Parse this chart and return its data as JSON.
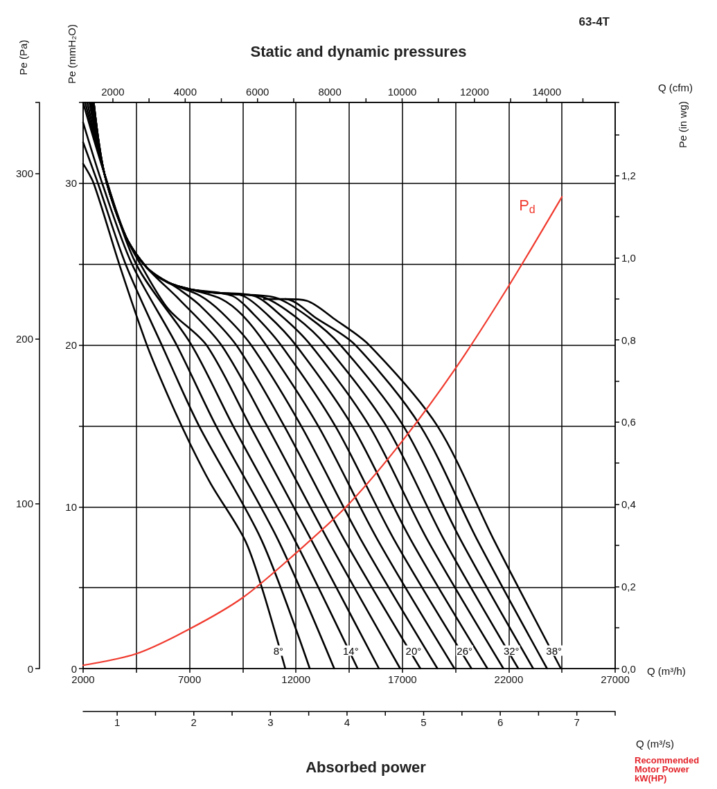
{
  "chart_data": {
    "type": "line",
    "title": "Static and dynamic pressures",
    "subtitle": "63-4T",
    "xlabel": "Q (m³/h)",
    "x2label": "Q (cfm)",
    "ylabel": "Pe (Pa)",
    "y2label": "Pe (in wg)",
    "y3label": "Pe (mmH₂O)",
    "xlim": [
      2000,
      27000
    ],
    "xticks": [
      2000,
      {
        "value": 4500,
        "label": null
      },
      7000,
      {
        "value": 9500,
        "label": null
      },
      12000,
      {
        "value": 14500,
        "label": null
      },
      17000,
      {
        "value": 19500,
        "label": null
      },
      22000,
      {
        "value": 24500,
        "label": null
      },
      27000
    ],
    "x2lim": [
      1177,
      15892
    ],
    "x2ticks": [
      2000,
      {
        "value": 3000,
        "label": null
      },
      4000,
      {
        "value": 5000,
        "label": null
      },
      6000,
      {
        "value": 7000,
        "label": null
      },
      8000,
      {
        "value": 9000,
        "label": null
      },
      10000,
      {
        "value": 11000,
        "label": null
      },
      12000,
      {
        "value": 13000,
        "label": null
      },
      14000,
      {
        "value": 15000,
        "label": null
      }
    ],
    "ylim": [
      0,
      343.2
    ],
    "yticks": [
      0,
      100,
      200,
      300
    ],
    "y2lim": [
      0,
      1.378
    ],
    "y2ticks": [
      {
        "value": 0,
        "label": "0,0"
      },
      {
        "value": 0.1,
        "label": null
      },
      {
        "value": 0.2,
        "label": "0,2"
      },
      {
        "value": 0.3,
        "label": null
      },
      {
        "value": 0.4,
        "label": "0,4"
      },
      {
        "value": 0.5,
        "label": null
      },
      {
        "value": 0.6,
        "label": "0,6"
      },
      {
        "value": 0.7,
        "label": null
      },
      {
        "value": 0.8,
        "label": "0,8"
      },
      {
        "value": 0.9,
        "label": null
      },
      {
        "value": 1.0,
        "label": "1,0"
      },
      {
        "value": 1.1,
        "label": null
      },
      {
        "value": 1.2,
        "label": "1,2"
      },
      {
        "value": 1.3,
        "label": null
      }
    ],
    "y3lim": [
      0,
      35
    ],
    "y3ticks": [
      0,
      {
        "value": 5,
        "label": null
      },
      10,
      {
        "value": 15,
        "label": null
      },
      20,
      {
        "value": 25,
        "label": null
      },
      30
    ],
    "grid": true,
    "legend": false,
    "marker": "none",
    "line_style": "solid",
    "annotations": [
      "Absorbed power",
      "Recommended Motor Power kW(HP)",
      "Q (m³/s)",
      "1",
      "2",
      "3",
      "4",
      "5",
      "6",
      "7"
    ],
    "series": [
      {
        "name": "8°",
        "color": "#000000",
        "x": [
          2000,
          2500,
          3700,
          5000,
          6000,
          7000,
          8000,
          9600,
          10400,
          11500
        ],
        "values": [
          306,
          294,
          245,
          196,
          165,
          137,
          112,
          78,
          49,
          0
        ]
      },
      {
        "color": "#000000",
        "x": [
          2000,
          2700,
          4000,
          5700,
          7450,
          10380,
          12650
        ],
        "values": [
          319,
          294,
          245,
          196,
          147,
          78,
          0
        ]
      },
      {
        "color": "#000000",
        "x": [
          2000,
          2900,
          4300,
          6400,
          8250,
          11160,
          13800
        ],
        "values": [
          331,
          294,
          245,
          196,
          147,
          78,
          0
        ]
      },
      {
        "name": "14°",
        "color": "#000000",
        "x": [
          2000,
          3000,
          4500,
          7100,
          9050,
          11940,
          14900
        ],
        "values": [
          343,
          300,
          245,
          196,
          147,
          78,
          0
        ]
      },
      {
        "color": "#000000",
        "x": [
          2100,
          3000,
          4000,
          4700,
          6000,
          7800,
          9850,
          12720,
          15900
        ],
        "values": [
          343,
          300,
          262,
          245,
          218,
          196,
          147,
          78,
          0
        ]
      },
      {
        "color": "#000000",
        "x": [
          2200,
          3000,
          4000,
          5000,
          6500,
          8500,
          10650,
          13500,
          16900
        ],
        "values": [
          343,
          300,
          262,
          243,
          224,
          196,
          147,
          78,
          0
        ]
      },
      {
        "name": "20°",
        "color": "#000000",
        "x": [
          2300,
          3000,
          4000,
          5000,
          6500,
          7500,
          9200,
          11450,
          14280,
          17850
        ],
        "values": [
          343,
          300,
          262,
          243,
          230,
          220,
          196,
          147,
          78,
          0
        ]
      },
      {
        "color": "#000000",
        "x": [
          2350,
          3000,
          4000,
          5000,
          6000,
          7500,
          8500,
          9900,
          12250,
          15060,
          18650
        ],
        "values": [
          343,
          300,
          262,
          243,
          234,
          226,
          216,
          196,
          147,
          78,
          0
        ]
      },
      {
        "color": "#000000",
        "x": [
          2400,
          3000,
          4000,
          5000,
          6000,
          7000,
          8500,
          9500,
          10600,
          13050,
          15840,
          19450
        ],
        "values": [
          343,
          300,
          262,
          243,
          234,
          230,
          224,
          214,
          196,
          147,
          78,
          0
        ]
      },
      {
        "name": "26°",
        "color": "#000000",
        "x": [
          2450,
          3000,
          4000,
          5000,
          6000,
          7000,
          9000,
          10000,
          11300,
          13850,
          16620,
          20250
        ],
        "values": [
          343,
          300,
          262,
          243,
          234,
          230,
          226,
          215,
          196,
          147,
          78,
          0
        ]
      },
      {
        "color": "#000000",
        "x": [
          2500,
          3000,
          4000,
          5000,
          6000,
          7000,
          8000,
          9500,
          10700,
          12000,
          14650,
          17400,
          21000
        ],
        "values": [
          343,
          300,
          262,
          243,
          234,
          230,
          228,
          226,
          214,
          196,
          147,
          78,
          0
        ]
      },
      {
        "color": "#000000",
        "x": [
          2500,
          3000,
          4000,
          5000,
          6000,
          7000,
          8000,
          10000,
          11300,
          12700,
          15450,
          18180,
          21750
        ],
        "values": [
          343,
          300,
          262,
          243,
          234,
          230,
          228,
          226,
          214,
          196,
          147,
          78,
          0
        ]
      },
      {
        "name": "32°",
        "color": "#000000",
        "x": [
          2500,
          3000,
          4000,
          5000,
          6000,
          7000,
          8000,
          9000,
          10500,
          12000,
          13400,
          16250,
          18960,
          22450
        ],
        "values": [
          343,
          300,
          262,
          243,
          234,
          230,
          228,
          227,
          225,
          213,
          196,
          147,
          78,
          0
        ]
      },
      {
        "color": "#000000",
        "x": [
          2500,
          3000,
          4000,
          5000,
          6000,
          7000,
          8000,
          9000,
          11000,
          12600,
          14100,
          17050,
          19740,
          23150
        ],
        "values": [
          343,
          300,
          262,
          243,
          234,
          230,
          228,
          227,
          225,
          213,
          196,
          147,
          78,
          0
        ]
      },
      {
        "color": "#000000",
        "x": [
          10500,
          11500,
          13000,
          14800,
          17850,
          20520,
          23800
        ],
        "values": [
          224,
          224,
          212,
          196,
          147,
          78,
          0
        ]
      },
      {
        "name": "38°",
        "color": "#000000",
        "x": [
          11500,
          12500,
          13800,
          15450,
          18650,
          21300,
          24450
        ],
        "values": [
          224,
          223,
          212,
          196,
          147,
          78,
          0
        ]
      },
      {
        "name": "P$_{d}$",
        "color": "#f03a2e",
        "x": [
          2000,
          4500,
          7000,
          9500,
          12000,
          14500,
          17000,
          19500,
          22000,
          24500
        ],
        "values": [
          2,
          9,
          24,
          43,
          70,
          100,
          138,
          182,
          232,
          286
        ]
      }
    ]
  }
}
